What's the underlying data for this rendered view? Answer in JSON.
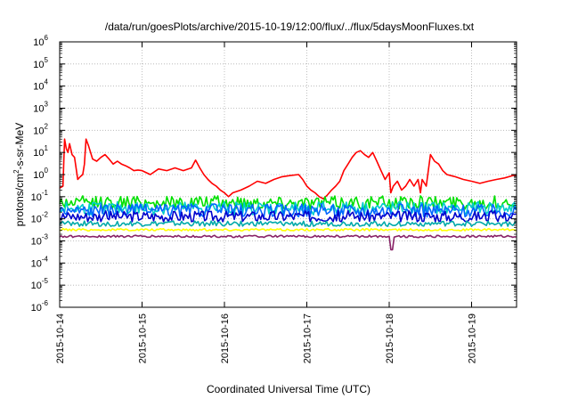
{
  "chart_data": {
    "type": "line",
    "title": "/data/run/goesPlots/archive/2015-10-19/12:00/flux/../flux/5daysMoonFluxes.txt",
    "xlabel": "Coordinated Universal Time (UTC)",
    "ylabel_parts": [
      "protons/cm",
      "2",
      "-s-sr-MeV"
    ],
    "y_scale": "log",
    "ylim_exponents": [
      -6,
      6
    ],
    "y_ticks": [
      {
        "base": "10",
        "exp": "-6"
      },
      {
        "base": "10",
        "exp": "-5"
      },
      {
        "base": "10",
        "exp": "-4"
      },
      {
        "base": "10",
        "exp": "-3"
      },
      {
        "base": "10",
        "exp": "-2"
      },
      {
        "base": "10",
        "exp": "-1"
      },
      {
        "base": "10",
        "exp": "0"
      },
      {
        "base": "10",
        "exp": "1"
      },
      {
        "base": "10",
        "exp": "2"
      },
      {
        "base": "10",
        "exp": "3"
      },
      {
        "base": "10",
        "exp": "4"
      },
      {
        "base": "10",
        "exp": "5"
      },
      {
        "base": "10",
        "exp": "6"
      }
    ],
    "x_range_days": [
      0,
      5.55
    ],
    "x_ticks": [
      "2015-10-14",
      "2015-10-15",
      "2015-10-16",
      "2015-10-17",
      "2015-10-18",
      "2015-10-19"
    ],
    "grid": true,
    "series": [
      {
        "color": "#ff0000",
        "x": [
          0,
          0.04,
          0.06,
          0.08,
          0.1,
          0.12,
          0.15,
          0.18,
          0.22,
          0.25,
          0.28,
          0.3,
          0.32,
          0.35,
          0.4,
          0.45,
          0.5,
          0.55,
          0.6,
          0.65,
          0.7,
          0.75,
          0.8,
          0.85,
          0.9,
          0.95,
          1.0,
          1.1,
          1.2,
          1.3,
          1.4,
          1.5,
          1.6,
          1.65,
          1.7,
          1.75,
          1.8,
          1.85,
          1.9,
          1.95,
          2.0,
          2.05,
          2.1,
          2.2,
          2.3,
          2.4,
          2.5,
          2.6,
          2.7,
          2.8,
          2.9,
          2.95,
          3.0,
          3.05,
          3.1,
          3.15,
          3.2,
          3.25,
          3.3,
          3.35,
          3.4,
          3.45,
          3.5,
          3.55,
          3.6,
          3.65,
          3.7,
          3.75,
          3.8,
          3.85,
          3.9,
          3.95,
          4.0,
          4.02,
          4.05,
          4.1,
          4.15,
          4.2,
          4.25,
          4.3,
          4.35,
          4.38,
          4.4,
          4.45,
          4.5,
          4.55,
          4.6,
          4.65,
          4.7,
          4.8,
          4.9,
          5.0,
          5.1,
          5.2,
          5.3,
          5.4,
          5.5,
          5.55
        ],
        "y": [
          0.25,
          0.3,
          40,
          15,
          10,
          25,
          8,
          6,
          0.6,
          0.8,
          1.0,
          3,
          40,
          20,
          5,
          4,
          6,
          8,
          5,
          3,
          4,
          3,
          2.5,
          2,
          1.5,
          1.6,
          1.5,
          1.0,
          1.8,
          1.5,
          2.0,
          1.5,
          2.0,
          4.5,
          2.0,
          1.0,
          0.6,
          0.4,
          0.3,
          0.2,
          0.15,
          0.1,
          0.15,
          0.2,
          0.3,
          0.5,
          0.4,
          0.6,
          0.8,
          0.9,
          1.0,
          0.6,
          0.3,
          0.2,
          0.15,
          0.1,
          0.08,
          0.12,
          0.2,
          0.3,
          0.5,
          1.5,
          3,
          6,
          10,
          12,
          8,
          6,
          10,
          4,
          1.5,
          0.6,
          1.2,
          0.15,
          0.3,
          0.5,
          0.2,
          0.3,
          0.6,
          0.3,
          0.6,
          0.15,
          0.6,
          0.3,
          8,
          4,
          3,
          1.5,
          1.0,
          0.8,
          0.6,
          0.5,
          0.4,
          0.5,
          0.6,
          0.7,
          0.9,
          0.9
        ]
      },
      {
        "color": "#00e000",
        "baseline": 0.055,
        "amp": 0.3
      },
      {
        "color": "#00cccc",
        "baseline": 0.03,
        "amp": 0.3
      },
      {
        "color": "#0066ff",
        "baseline": 0.024,
        "amp": 0.3
      },
      {
        "color": "#0000cc",
        "baseline": 0.013,
        "amp": 0.25
      },
      {
        "color": "#00aaaa",
        "baseline": 0.006,
        "amp": 0.12
      },
      {
        "color": "#ffff00",
        "baseline": 0.0032,
        "amp": 0.05
      },
      {
        "color": "#882266",
        "baseline": 0.0016,
        "amp": 0.05,
        "dip_x": 4.03,
        "dip_y": 0.0004
      }
    ]
  }
}
